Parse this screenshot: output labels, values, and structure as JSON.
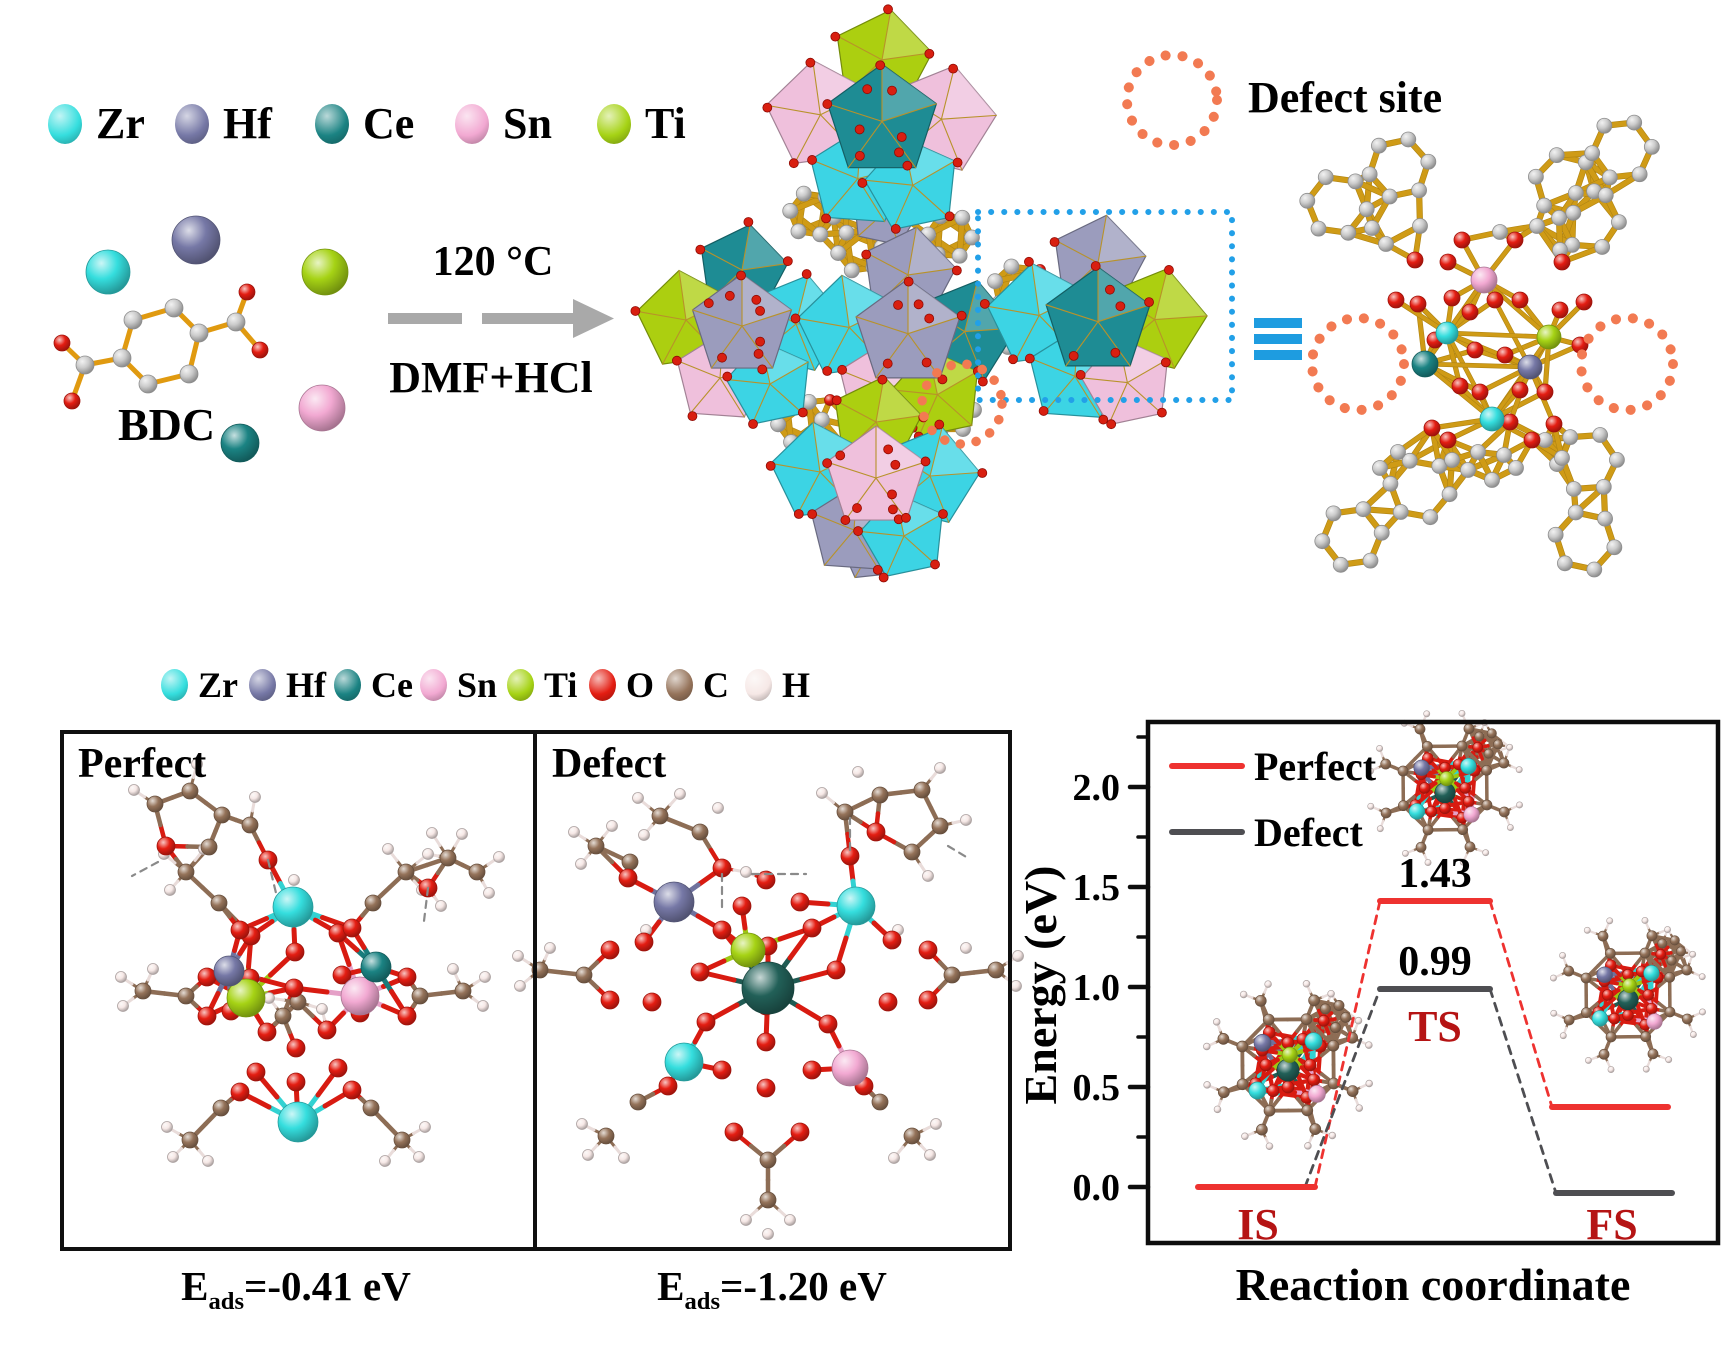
{
  "top_legend": {
    "items": [
      {
        "label": "Zr",
        "color_key": "zr"
      },
      {
        "label": "Hf",
        "color_key": "hf"
      },
      {
        "label": "Ce",
        "color_key": "ce"
      },
      {
        "label": "Sn",
        "color_key": "sn"
      },
      {
        "label": "Ti",
        "color_key": "ti"
      }
    ]
  },
  "bottom_legend": {
    "items": [
      {
        "label": "Zr",
        "color_key": "zr"
      },
      {
        "label": "Hf",
        "color_key": "hf"
      },
      {
        "label": "Ce",
        "color_key": "ce"
      },
      {
        "label": "Sn",
        "color_key": "sn"
      },
      {
        "label": "Ti",
        "color_key": "ti"
      },
      {
        "label": "O",
        "color_key": "o"
      },
      {
        "label": "C",
        "color_key": "c"
      },
      {
        "label": "H",
        "color_key": "h"
      }
    ]
  },
  "bdc_label": "BDC",
  "reaction": {
    "temperature": "120 °C",
    "conditions": "DMF+HCl"
  },
  "defect_site_label": "Defect site",
  "panels": {
    "perfect": {
      "title": "Perfect",
      "eads": {
        "base": "E",
        "sub": "ads",
        "rest": "=-0.41 eV"
      }
    },
    "defect": {
      "title": "Defect",
      "eads": {
        "base": "E",
        "sub": "ads",
        "rest": "=-1.20 eV"
      }
    }
  },
  "chart_data": {
    "type": "line",
    "title": "",
    "xlabel": "Reaction coordinate",
    "ylabel": "Energy (eV)",
    "ylim": [
      -0.25,
      2.35
    ],
    "yticks": [
      "0.0",
      "0.5",
      "1.0",
      "1.5",
      "2.0"
    ],
    "ytick_values": [
      0,
      0.5,
      1.0,
      1.5,
      2.0
    ],
    "minor_tick_step": 0.25,
    "grid": false,
    "legend_position": "top-left",
    "states": [
      "IS",
      "TS",
      "FS"
    ],
    "series": [
      {
        "name": "Perfect",
        "color": "#ee3230",
        "values": [
          0.0,
          1.43,
          0.4
        ]
      },
      {
        "name": "Defect",
        "color": "#4e4e52",
        "values": [
          0.0,
          0.99,
          -0.03
        ]
      }
    ],
    "barrier_labels": {
      "perfect": "1.43",
      "defect": "0.99"
    },
    "state_label_color": "#b51414"
  },
  "colors": {
    "atoms": {
      "zr": "#35dede",
      "hf": "#7678a6",
      "ce": "#1b8383",
      "ce2": "#226058",
      "sn": "#f2a9d2",
      "ti": "#a6d315",
      "o": "#e41d12",
      "c": "#95735a",
      "h": "#f6e8e6",
      "cg": "#cbcbcb"
    },
    "poly": {
      "zr": "#3cd4e4",
      "ce": "#1e8c94",
      "sn": "#efc0dc",
      "hf": "#9b9cbd",
      "ti": "#accf10"
    },
    "bond_gold": "#cf9b16",
    "defect_orange": "#f27a52",
    "highlight_blue": "#22a0e8",
    "arrow_gray": "#a9a9a9"
  }
}
